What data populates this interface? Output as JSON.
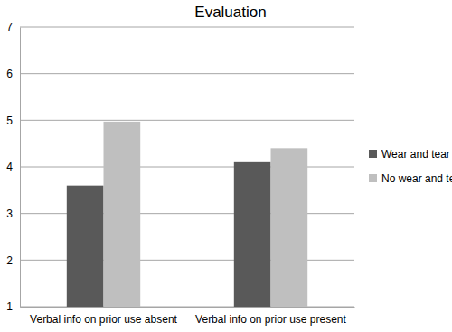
{
  "chart_data": {
    "type": "bar",
    "title": "Evaluation",
    "categories": [
      "Verbal info on prior use absent",
      "Verbal info on prior use present"
    ],
    "series": [
      {
        "name": "Wear and tear",
        "color": "#595959",
        "values": [
          3.6,
          4.1
        ]
      },
      {
        "name": "No wear and tear",
        "color": "#bfbfbf",
        "values": [
          4.97,
          4.4
        ]
      }
    ],
    "ylim": [
      1,
      7
    ],
    "yticks": [
      1,
      2,
      3,
      4,
      5,
      6,
      7
    ],
    "grid": true,
    "legend": "right"
  }
}
